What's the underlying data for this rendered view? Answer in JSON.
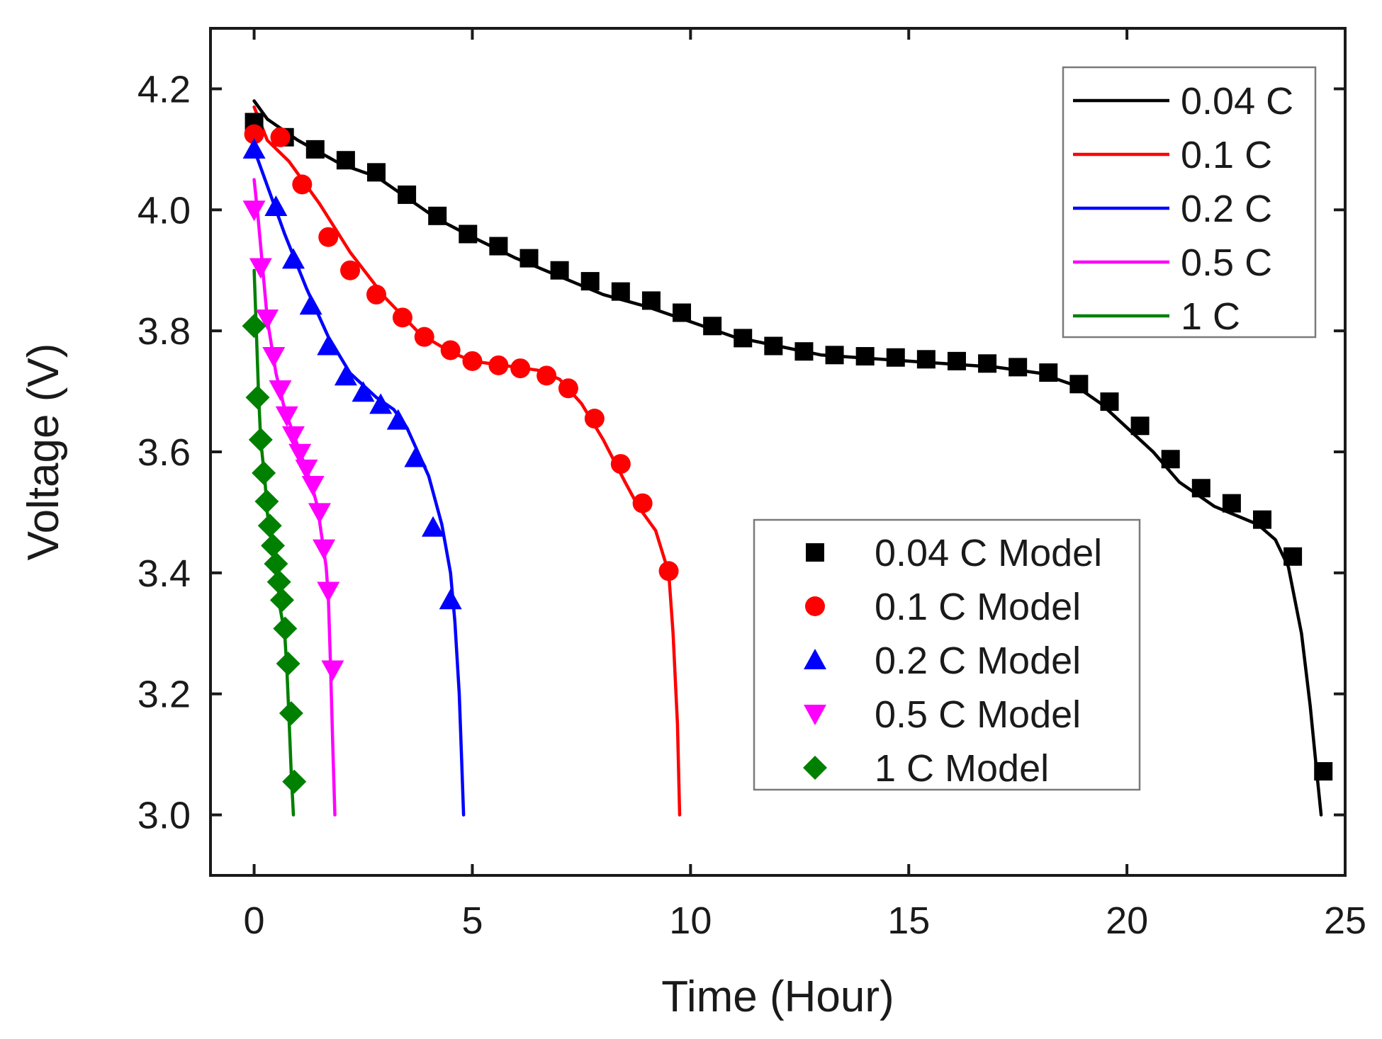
{
  "chart_data": {
    "type": "line",
    "xlabel": "Time (Hour)",
    "ylabel": "Voltage (V)",
    "xlim": [
      -1,
      25
    ],
    "ylim": [
      2.9,
      4.3
    ],
    "xticks": [
      0,
      5,
      10,
      15,
      20,
      25
    ],
    "xtick_labels": [
      "0",
      "5",
      "10",
      "15",
      "20",
      "25"
    ],
    "yticks": [
      3.0,
      3.2,
      3.4,
      3.6,
      3.8,
      4.0,
      4.2
    ],
    "ytick_labels": [
      "3.0",
      "3.2",
      "3.4",
      "3.6",
      "3.8",
      "4.0",
      "4.2"
    ],
    "grid": false,
    "line_legend_position": "top-right",
    "marker_legend_position": "bottom-right",
    "lines": [
      {
        "name": "0.04 C",
        "color": "#000000",
        "points": [
          [
            0,
            4.18
          ],
          [
            0.3,
            4.15
          ],
          [
            1,
            4.115
          ],
          [
            2,
            4.075
          ],
          [
            2.8,
            4.055
          ],
          [
            3.5,
            4.02
          ],
          [
            4.2,
            3.985
          ],
          [
            5,
            3.955
          ],
          [
            6,
            3.92
          ],
          [
            7,
            3.89
          ],
          [
            8,
            3.86
          ],
          [
            9,
            3.84
          ],
          [
            10,
            3.815
          ],
          [
            11,
            3.79
          ],
          [
            12,
            3.775
          ],
          [
            13,
            3.76
          ],
          [
            14,
            3.755
          ],
          [
            15,
            3.75
          ],
          [
            16,
            3.745
          ],
          [
            17,
            3.74
          ],
          [
            18,
            3.73
          ],
          [
            18.8,
            3.71
          ],
          [
            19.4,
            3.68
          ],
          [
            20,
            3.64
          ],
          [
            20.6,
            3.6
          ],
          [
            21.2,
            3.55
          ],
          [
            22,
            3.51
          ],
          [
            23,
            3.48
          ],
          [
            23.4,
            3.455
          ],
          [
            23.7,
            3.41
          ],
          [
            24,
            3.3
          ],
          [
            24.2,
            3.18
          ],
          [
            24.35,
            3.07
          ],
          [
            24.45,
            3.0
          ]
        ]
      },
      {
        "name": "0.1 C",
        "color": "#ff0000",
        "points": [
          [
            0,
            4.17
          ],
          [
            0.3,
            4.115
          ],
          [
            0.8,
            4.08
          ],
          [
            1.5,
            4.01
          ],
          [
            2.2,
            3.93
          ],
          [
            3,
            3.855
          ],
          [
            3.8,
            3.795
          ],
          [
            4.5,
            3.765
          ],
          [
            5,
            3.75
          ],
          [
            5.5,
            3.745
          ],
          [
            6.5,
            3.735
          ],
          [
            7,
            3.72
          ],
          [
            7.5,
            3.68
          ],
          [
            8,
            3.62
          ],
          [
            8.5,
            3.55
          ],
          [
            8.8,
            3.51
          ],
          [
            9.2,
            3.47
          ],
          [
            9.5,
            3.4
          ],
          [
            9.6,
            3.3
          ],
          [
            9.7,
            3.15
          ],
          [
            9.75,
            3.0
          ]
        ]
      },
      {
        "name": "0.2 C",
        "color": "#0000ff",
        "points": [
          [
            0,
            4.1
          ],
          [
            0.3,
            4.04
          ],
          [
            0.7,
            3.96
          ],
          [
            1.2,
            3.87
          ],
          [
            1.7,
            3.79
          ],
          [
            2.2,
            3.73
          ],
          [
            2.8,
            3.69
          ],
          [
            3.2,
            3.67
          ],
          [
            3.5,
            3.64
          ],
          [
            4,
            3.56
          ],
          [
            4.3,
            3.48
          ],
          [
            4.5,
            3.4
          ],
          [
            4.6,
            3.32
          ],
          [
            4.7,
            3.2
          ],
          [
            4.75,
            3.1
          ],
          [
            4.8,
            3.0
          ]
        ]
      },
      {
        "name": "0.5 C",
        "color": "#ff00ff",
        "points": [
          [
            0,
            4.05
          ],
          [
            0.1,
            3.98
          ],
          [
            0.2,
            3.9
          ],
          [
            0.3,
            3.82
          ],
          [
            0.5,
            3.73
          ],
          [
            0.7,
            3.67
          ],
          [
            0.9,
            3.63
          ],
          [
            1.1,
            3.59
          ],
          [
            1.3,
            3.55
          ],
          [
            1.45,
            3.51
          ],
          [
            1.55,
            3.46
          ],
          [
            1.65,
            3.41
          ],
          [
            1.7,
            3.36
          ],
          [
            1.75,
            3.25
          ],
          [
            1.8,
            3.12
          ],
          [
            1.85,
            3.0
          ]
        ]
      },
      {
        "name": "1 C",
        "color": "#008000",
        "points": [
          [
            0,
            3.9
          ],
          [
            0.05,
            3.8
          ],
          [
            0.1,
            3.7
          ],
          [
            0.15,
            3.62
          ],
          [
            0.25,
            3.55
          ],
          [
            0.3,
            3.5
          ],
          [
            0.4,
            3.45
          ],
          [
            0.45,
            3.42
          ],
          [
            0.55,
            3.38
          ],
          [
            0.6,
            3.34
          ],
          [
            0.7,
            3.3
          ],
          [
            0.75,
            3.24
          ],
          [
            0.8,
            3.16
          ],
          [
            0.85,
            3.07
          ],
          [
            0.9,
            3.0
          ]
        ]
      }
    ],
    "markers": [
      {
        "name": "0.04 C Model",
        "shape": "square",
        "color": "#000000",
        "points": [
          [
            0,
            4.145
          ],
          [
            0.7,
            4.12
          ],
          [
            1.4,
            4.1
          ],
          [
            2.1,
            4.082
          ],
          [
            2.8,
            4.062
          ],
          [
            3.5,
            4.025
          ],
          [
            4.2,
            3.99
          ],
          [
            4.9,
            3.96
          ],
          [
            5.6,
            3.94
          ],
          [
            6.3,
            3.92
          ],
          [
            7,
            3.9
          ],
          [
            7.7,
            3.882
          ],
          [
            8.4,
            3.865
          ],
          [
            9.1,
            3.85
          ],
          [
            9.8,
            3.83
          ],
          [
            10.5,
            3.808
          ],
          [
            11.2,
            3.788
          ],
          [
            11.9,
            3.775
          ],
          [
            12.6,
            3.766
          ],
          [
            13.3,
            3.76
          ],
          [
            14,
            3.758
          ],
          [
            14.7,
            3.756
          ],
          [
            15.4,
            3.753
          ],
          [
            16.1,
            3.75
          ],
          [
            16.8,
            3.746
          ],
          [
            17.5,
            3.74
          ],
          [
            18.2,
            3.731
          ],
          [
            18.9,
            3.712
          ],
          [
            19.6,
            3.683
          ],
          [
            20.3,
            3.643
          ],
          [
            21,
            3.588
          ],
          [
            21.7,
            3.54
          ],
          [
            22.4,
            3.515
          ],
          [
            23.1,
            3.488
          ],
          [
            23.8,
            3.427
          ],
          [
            24.5,
            3.072
          ]
        ]
      },
      {
        "name": "0.1 C Model",
        "color": "#ff0000",
        "shape": "circle",
        "points": [
          [
            0,
            4.125
          ],
          [
            0.6,
            4.12
          ],
          [
            1.1,
            4.042
          ],
          [
            1.7,
            3.955
          ],
          [
            2.2,
            3.9
          ],
          [
            2.8,
            3.86
          ],
          [
            3.4,
            3.822
          ],
          [
            3.9,
            3.79
          ],
          [
            4.5,
            3.768
          ],
          [
            5,
            3.75
          ],
          [
            5.6,
            3.743
          ],
          [
            6.1,
            3.738
          ],
          [
            6.7,
            3.726
          ],
          [
            7.2,
            3.705
          ],
          [
            7.8,
            3.655
          ],
          [
            8.4,
            3.58
          ],
          [
            8.9,
            3.515
          ],
          [
            9.5,
            3.403
          ]
        ]
      },
      {
        "name": "0.2 C Model",
        "shape": "triangle-up",
        "color": "#0000ff",
        "points": [
          [
            0,
            4.1
          ],
          [
            0.5,
            4.005
          ],
          [
            0.9,
            3.918
          ],
          [
            1.3,
            3.842
          ],
          [
            1.7,
            3.775
          ],
          [
            2.1,
            3.725
          ],
          [
            2.5,
            3.698
          ],
          [
            2.9,
            3.678
          ],
          [
            3.3,
            3.652
          ],
          [
            3.7,
            3.59
          ],
          [
            4.1,
            3.475
          ],
          [
            4.5,
            3.355
          ]
        ]
      },
      {
        "name": "0.5 C Model",
        "shape": "triangle-down",
        "color": "#ff00ff",
        "points": [
          [
            0,
            4.0
          ],
          [
            0.15,
            3.905
          ],
          [
            0.3,
            3.82
          ],
          [
            0.45,
            3.758
          ],
          [
            0.6,
            3.703
          ],
          [
            0.75,
            3.66
          ],
          [
            0.9,
            3.627
          ],
          [
            1.05,
            3.598
          ],
          [
            1.2,
            3.572
          ],
          [
            1.35,
            3.545
          ],
          [
            1.5,
            3.5
          ],
          [
            1.6,
            3.44
          ],
          [
            1.7,
            3.37
          ],
          [
            1.8,
            3.24
          ]
        ]
      },
      {
        "name": "1 C Model",
        "shape": "diamond",
        "color": "#008000",
        "points": [
          [
            0,
            3.808
          ],
          [
            0.08,
            3.69
          ],
          [
            0.15,
            3.62
          ],
          [
            0.22,
            3.565
          ],
          [
            0.29,
            3.518
          ],
          [
            0.36,
            3.478
          ],
          [
            0.43,
            3.445
          ],
          [
            0.5,
            3.415
          ],
          [
            0.57,
            3.385
          ],
          [
            0.64,
            3.355
          ],
          [
            0.71,
            3.308
          ],
          [
            0.78,
            3.25
          ],
          [
            0.85,
            3.168
          ],
          [
            0.92,
            3.055
          ]
        ]
      }
    ]
  }
}
